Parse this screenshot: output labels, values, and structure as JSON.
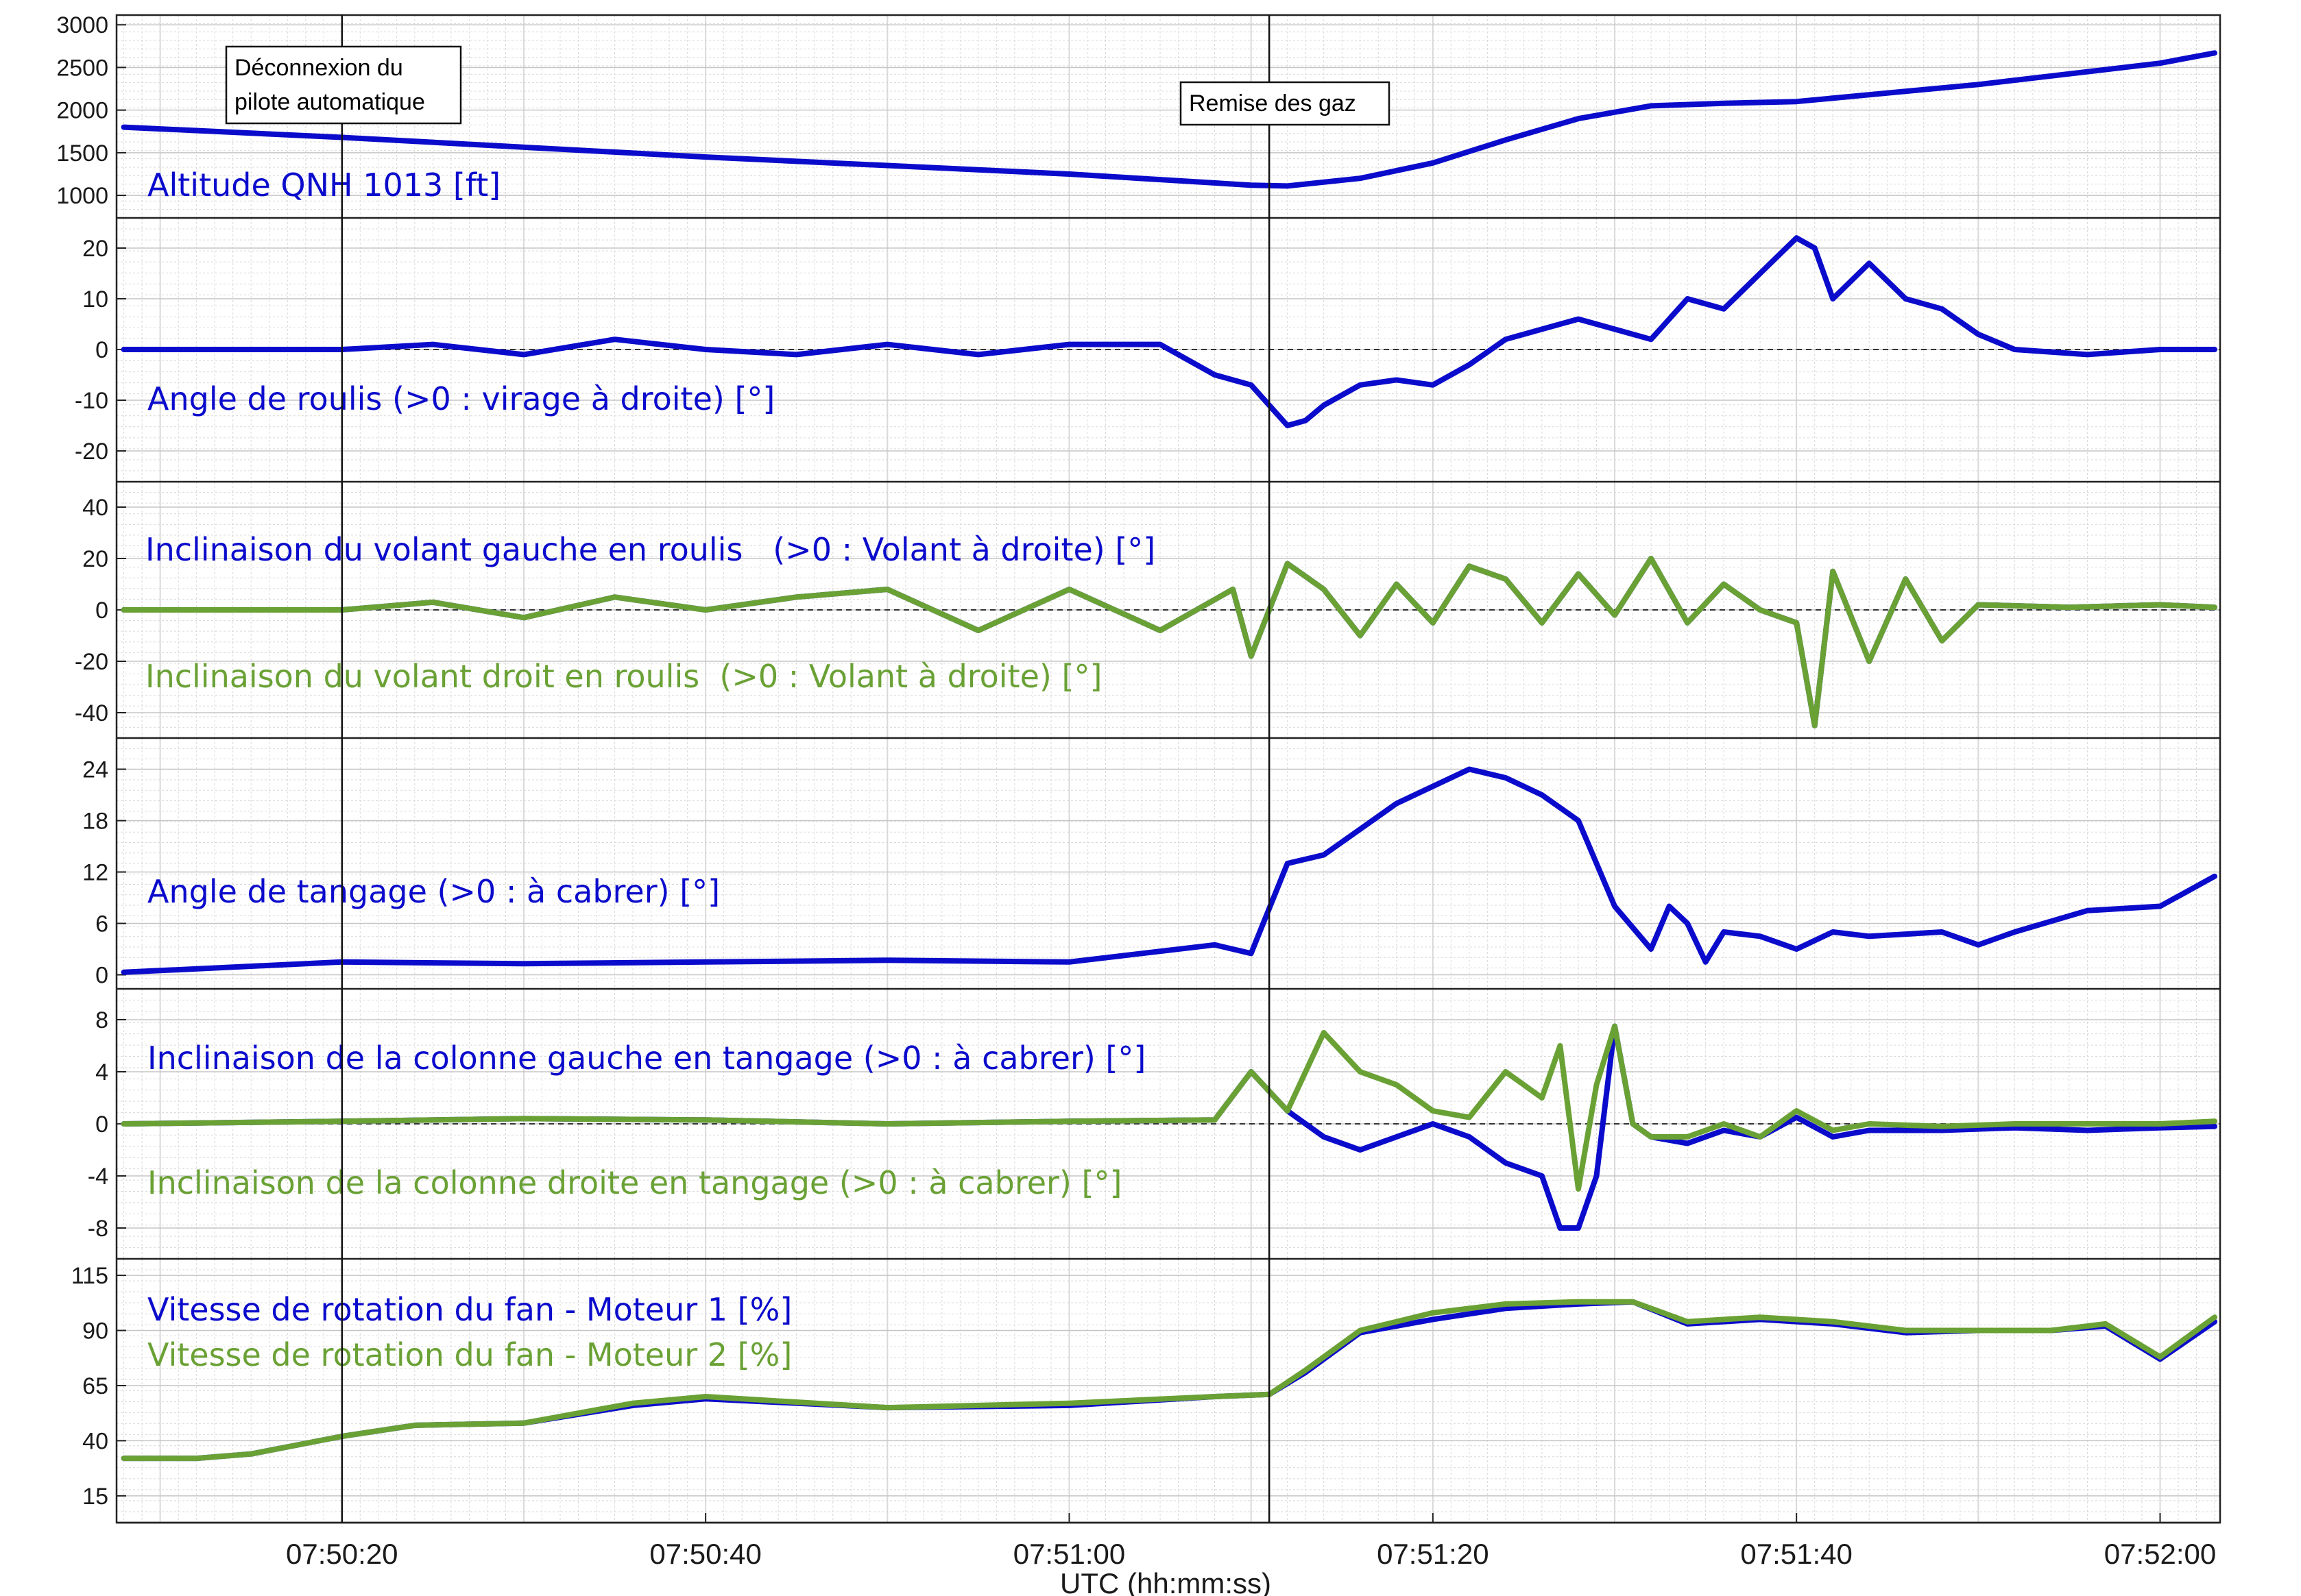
{
  "figure": {
    "xlabel": "UTC (hh:mm:ss)",
    "x_ticks": [
      "07:50:20",
      "07:50:40",
      "07:51:00",
      "07:51:20",
      "07:51:40",
      "07:52:00"
    ],
    "events": [
      {
        "time": "07:50:20",
        "label_line1": "Déconnexion du",
        "label_line2": "pilote automatique"
      },
      {
        "time": "07:51:11",
        "label_line1": "Remise des gaz",
        "label_line2": ""
      }
    ],
    "colors": {
      "blue": "#0b0bcc",
      "green": "#6aa135",
      "grid": "#d9d9d9",
      "axis": "#222222"
    }
  },
  "chart_data": [
    {
      "type": "line",
      "ylim": [
        800,
        3050
      ],
      "yticks": [
        "3000",
        "2500",
        "2000",
        "1500",
        "1000"
      ],
      "zero_line": false,
      "series": [
        {
          "name": "Altitude QNH 1013 [ft]",
          "color": "blue",
          "t": [
            "07:50:08",
            "07:50:20",
            "07:50:40",
            "07:51:00",
            "07:51:10",
            "07:51:12",
            "07:51:16",
            "07:51:20",
            "07:51:24",
            "07:51:28",
            "07:51:32",
            "07:51:36",
            "07:51:40",
            "07:51:50",
            "07:52:00",
            "07:52:03"
          ],
          "values": [
            1800,
            1680,
            1450,
            1250,
            1120,
            1110,
            1200,
            1380,
            1650,
            1900,
            2050,
            2080,
            2100,
            2300,
            2550,
            2670
          ]
        }
      ]
    },
    {
      "type": "line",
      "ylim": [
        -25,
        25
      ],
      "yticks": [
        "20",
        "10",
        "0",
        "-10",
        "-20"
      ],
      "zero_line": true,
      "series": [
        {
          "name": "Angle de roulis (>0 : virage à droite) [°]",
          "color": "blue",
          "t": [
            "07:50:08",
            "07:50:20",
            "07:50:25",
            "07:50:30",
            "07:50:35",
            "07:50:40",
            "07:50:45",
            "07:50:50",
            "07:50:55",
            "07:51:00",
            "07:51:05",
            "07:51:08",
            "07:51:10",
            "07:51:12",
            "07:51:13",
            "07:51:14",
            "07:51:16",
            "07:51:18",
            "07:51:20",
            "07:51:22",
            "07:51:24",
            "07:51:26",
            "07:51:28",
            "07:51:30",
            "07:51:32",
            "07:51:34",
            "07:51:36",
            "07:51:38",
            "07:51:40",
            "07:51:41",
            "07:51:42",
            "07:51:44",
            "07:51:46",
            "07:51:48",
            "07:51:50",
            "07:51:52",
            "07:51:56",
            "07:52:00",
            "07:52:03"
          ],
          "values": [
            0,
            0,
            1,
            -1,
            2,
            0,
            -1,
            1,
            -1,
            1,
            1,
            -5,
            -7,
            -15,
            -14,
            -11,
            -7,
            -6,
            -7,
            -3,
            2,
            4,
            6,
            4,
            2,
            10,
            8,
            15,
            22,
            20,
            10,
            17,
            10,
            8,
            3,
            0,
            -1,
            0,
            0
          ]
        }
      ]
    },
    {
      "type": "line",
      "ylim": [
        -48,
        48
      ],
      "yticks": [
        "40",
        "20",
        "0",
        "-20",
        "-40"
      ],
      "zero_line": true,
      "series": [
        {
          "name": "Inclinaison du volant gauche en roulis   (>0 : Volant à droite) [°]",
          "color": "blue",
          "t": [
            "07:50:08",
            "07:50:20",
            "07:50:25",
            "07:50:30",
            "07:50:35",
            "07:50:40",
            "07:50:45",
            "07:50:50",
            "07:50:55",
            "07:51:00",
            "07:51:05",
            "07:51:09",
            "07:51:10",
            "07:51:12",
            "07:51:14",
            "07:51:16",
            "07:51:18",
            "07:51:20",
            "07:51:22",
            "07:51:24",
            "07:51:26",
            "07:51:28",
            "07:51:30",
            "07:51:32",
            "07:51:34",
            "07:51:36",
            "07:51:38",
            "07:51:40",
            "07:51:41",
            "07:51:42",
            "07:51:44",
            "07:51:46",
            "07:51:48",
            "07:51:50",
            "07:51:55",
            "07:52:00",
            "07:52:03"
          ],
          "values": [
            0,
            0,
            3,
            -3,
            5,
            0,
            5,
            8,
            -8,
            8,
            -8,
            8,
            -18,
            18,
            8,
            -10,
            10,
            -5,
            17,
            12,
            -5,
            14,
            -2,
            20,
            -5,
            10,
            0,
            -5,
            -45,
            15,
            -20,
            12,
            -12,
            2,
            1,
            2,
            1
          ]
        },
        {
          "name": "Inclinaison du volant droit en roulis  (>0 : Volant à droite) [°]",
          "color": "green",
          "t": [
            "07:50:08",
            "07:50:20",
            "07:50:25",
            "07:50:30",
            "07:50:35",
            "07:50:40",
            "07:50:45",
            "07:50:50",
            "07:50:55",
            "07:51:00",
            "07:51:05",
            "07:51:09",
            "07:51:10",
            "07:51:12",
            "07:51:14",
            "07:51:16",
            "07:51:18",
            "07:51:20",
            "07:51:22",
            "07:51:24",
            "07:51:26",
            "07:51:28",
            "07:51:30",
            "07:51:32",
            "07:51:34",
            "07:51:36",
            "07:51:38",
            "07:51:40",
            "07:51:41",
            "07:51:42",
            "07:51:44",
            "07:51:46",
            "07:51:48",
            "07:51:50",
            "07:51:55",
            "07:52:00",
            "07:52:03"
          ],
          "values": [
            0,
            0,
            3,
            -3,
            5,
            0,
            5,
            8,
            -8,
            8,
            -8,
            8,
            -18,
            18,
            8,
            -10,
            10,
            -5,
            17,
            12,
            -5,
            14,
            -2,
            20,
            -5,
            10,
            0,
            -5,
            -45,
            15,
            -20,
            12,
            -12,
            2,
            1,
            2,
            1
          ]
        }
      ]
    },
    {
      "type": "line",
      "ylim": [
        -1,
        27
      ],
      "yticks": [
        "24",
        "18",
        "12",
        "6",
        "0"
      ],
      "zero_line": false,
      "series": [
        {
          "name": "Angle de tangage (>0 : à cabrer) [°]",
          "color": "blue",
          "t": [
            "07:50:08",
            "07:50:20",
            "07:50:30",
            "07:50:40",
            "07:50:50",
            "07:51:00",
            "07:51:08",
            "07:51:10",
            "07:51:12",
            "07:51:14",
            "07:51:16",
            "07:51:18",
            "07:51:20",
            "07:51:22",
            "07:51:24",
            "07:51:26",
            "07:51:28",
            "07:51:30",
            "07:51:32",
            "07:51:33",
            "07:51:34",
            "07:51:35",
            "07:51:36",
            "07:51:38",
            "07:51:40",
            "07:51:42",
            "07:51:44",
            "07:51:48",
            "07:51:50",
            "07:51:52",
            "07:51:56",
            "07:52:00",
            "07:52:03"
          ],
          "values": [
            0.3,
            1.5,
            1.3,
            1.5,
            1.7,
            1.5,
            3.5,
            2.5,
            13,
            14,
            17,
            20,
            22,
            24,
            23,
            21,
            18,
            8,
            3,
            8,
            6,
            1.5,
            5,
            4.5,
            3,
            5,
            4.5,
            5,
            3.5,
            5,
            7.5,
            8,
            11.5
          ]
        }
      ]
    },
    {
      "type": "line",
      "ylim": [
        -10,
        10
      ],
      "yticks": [
        "8",
        "4",
        "0",
        "-4",
        "-8"
      ],
      "zero_line": true,
      "series": [
        {
          "name": "Inclinaison de la colonne gauche en tangage (>0 : à cabrer) [°]",
          "color": "blue",
          "t": [
            "07:50:08",
            "07:50:20",
            "07:50:30",
            "07:50:40",
            "07:50:50",
            "07:51:00",
            "07:51:08",
            "07:51:10",
            "07:51:12",
            "07:51:14",
            "07:51:16",
            "07:51:18",
            "07:51:20",
            "07:51:22",
            "07:51:24",
            "07:51:26",
            "07:51:27",
            "07:51:28",
            "07:51:29",
            "07:51:30",
            "07:51:31",
            "07:51:32",
            "07:51:34",
            "07:51:36",
            "07:51:38",
            "07:51:40",
            "07:51:42",
            "07:51:44",
            "07:51:48",
            "07:51:52",
            "07:51:56",
            "07:52:00",
            "07:52:03"
          ],
          "values": [
            0,
            0.2,
            0.4,
            0.3,
            0,
            0.2,
            0.3,
            4,
            1,
            -1,
            -2,
            -1,
            0,
            -1,
            -3,
            -4,
            -8,
            -8,
            -4,
            7.5,
            0,
            -1,
            -1.5,
            -0.5,
            -1,
            0.5,
            -1,
            -0.5,
            -0.5,
            -0.3,
            -0.5,
            -0.3,
            -0.2
          ]
        },
        {
          "name": "Inclinaison de la colonne droite en tangage (>0 : à cabrer) [°]",
          "color": "green",
          "t": [
            "07:50:08",
            "07:50:20",
            "07:50:30",
            "07:50:40",
            "07:50:50",
            "07:51:00",
            "07:51:08",
            "07:51:10",
            "07:51:12",
            "07:51:14",
            "07:51:16",
            "07:51:18",
            "07:51:20",
            "07:51:22",
            "07:51:24",
            "07:51:26",
            "07:51:27",
            "07:51:28",
            "07:51:29",
            "07:51:30",
            "07:51:31",
            "07:51:32",
            "07:51:34",
            "07:51:36",
            "07:51:38",
            "07:51:40",
            "07:51:42",
            "07:51:44",
            "07:51:48",
            "07:51:52",
            "07:51:56",
            "07:52:00",
            "07:52:03"
          ],
          "values": [
            0,
            0.2,
            0.4,
            0.3,
            0,
            0.2,
            0.3,
            4,
            1,
            7,
            4,
            3,
            1,
            0.5,
            4,
            2,
            6,
            -5,
            3,
            7.5,
            0,
            -1,
            -1,
            0,
            -1,
            1,
            -0.5,
            0,
            -0.2,
            0,
            0,
            0,
            0.2
          ]
        }
      ]
    },
    {
      "type": "line",
      "ylim": [
        5,
        120
      ],
      "yticks": [
        "115",
        "90",
        "65",
        "40",
        "15"
      ],
      "zero_line": false,
      "series": [
        {
          "name": "Vitesse de rotation du fan - Moteur 1 [%]",
          "color": "blue",
          "t": [
            "07:50:08",
            "07:50:12",
            "07:50:15",
            "07:50:20",
            "07:50:24",
            "07:50:30",
            "07:50:36",
            "07:50:40",
            "07:50:50",
            "07:51:00",
            "07:51:08",
            "07:51:11",
            "07:51:13",
            "07:51:16",
            "07:51:20",
            "07:51:24",
            "07:51:28",
            "07:51:31",
            "07:51:34",
            "07:51:38",
            "07:51:42",
            "07:51:46",
            "07:51:50",
            "07:51:54",
            "07:51:57",
            "07:52:00",
            "07:52:03"
          ],
          "values": [
            32,
            32,
            34,
            42,
            47,
            48,
            56,
            59,
            55,
            56,
            60,
            61,
            71,
            89,
            95,
            100,
            102,
            103,
            93,
            95,
            93,
            89,
            90,
            90,
            92,
            77,
            94
          ]
        },
        {
          "name": "Vitesse de rotation du fan - Moteur 2 [%]",
          "color": "green",
          "t": [
            "07:50:08",
            "07:50:12",
            "07:50:15",
            "07:50:20",
            "07:50:24",
            "07:50:30",
            "07:50:36",
            "07:50:40",
            "07:50:50",
            "07:51:00",
            "07:51:08",
            "07:51:11",
            "07:51:13",
            "07:51:16",
            "07:51:20",
            "07:51:24",
            "07:51:28",
            "07:51:31",
            "07:51:34",
            "07:51:38",
            "07:51:42",
            "07:51:46",
            "07:51:50",
            "07:51:54",
            "07:51:57",
            "07:52:00",
            "07:52:03"
          ],
          "values": [
            32,
            32,
            34,
            42,
            47,
            48,
            57,
            60,
            55,
            57,
            60,
            61,
            72,
            90,
            98,
            102,
            103,
            103,
            94,
            96,
            94,
            90,
            90,
            90,
            93,
            78,
            96
          ]
        }
      ]
    }
  ]
}
